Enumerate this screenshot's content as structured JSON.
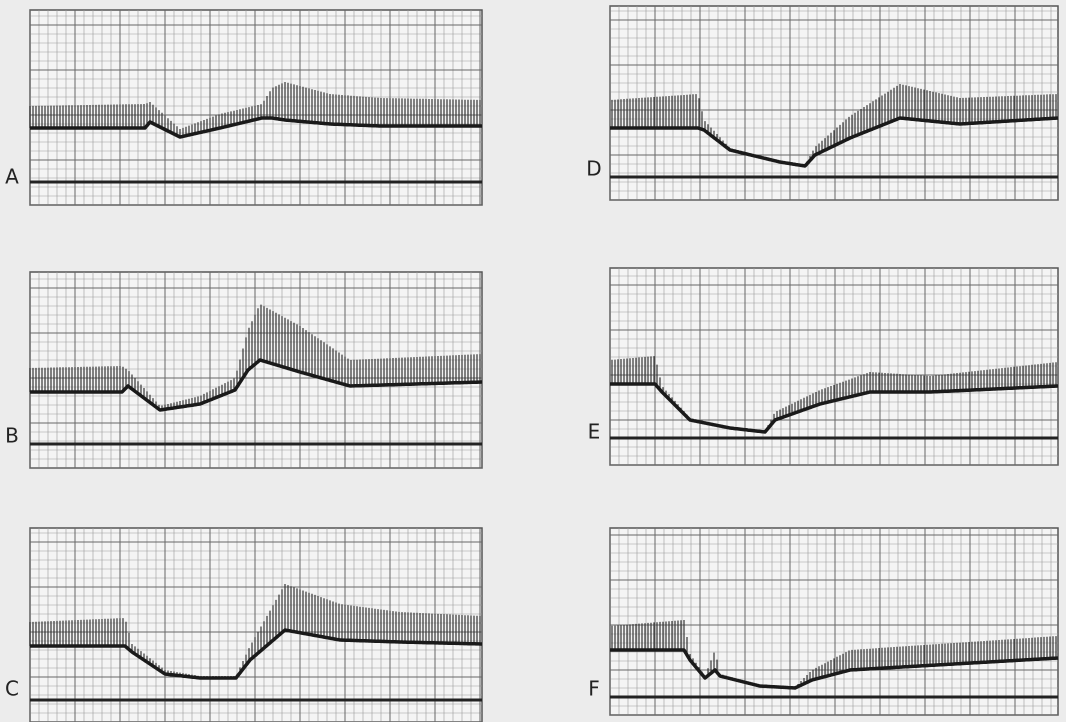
{
  "panels": [
    {
      "label": "A"
    },
    {
      "label": "B"
    },
    {
      "label": "C"
    },
    {
      "label": "D"
    },
    {
      "label": "E"
    },
    {
      "label": "F"
    }
  ]
}
